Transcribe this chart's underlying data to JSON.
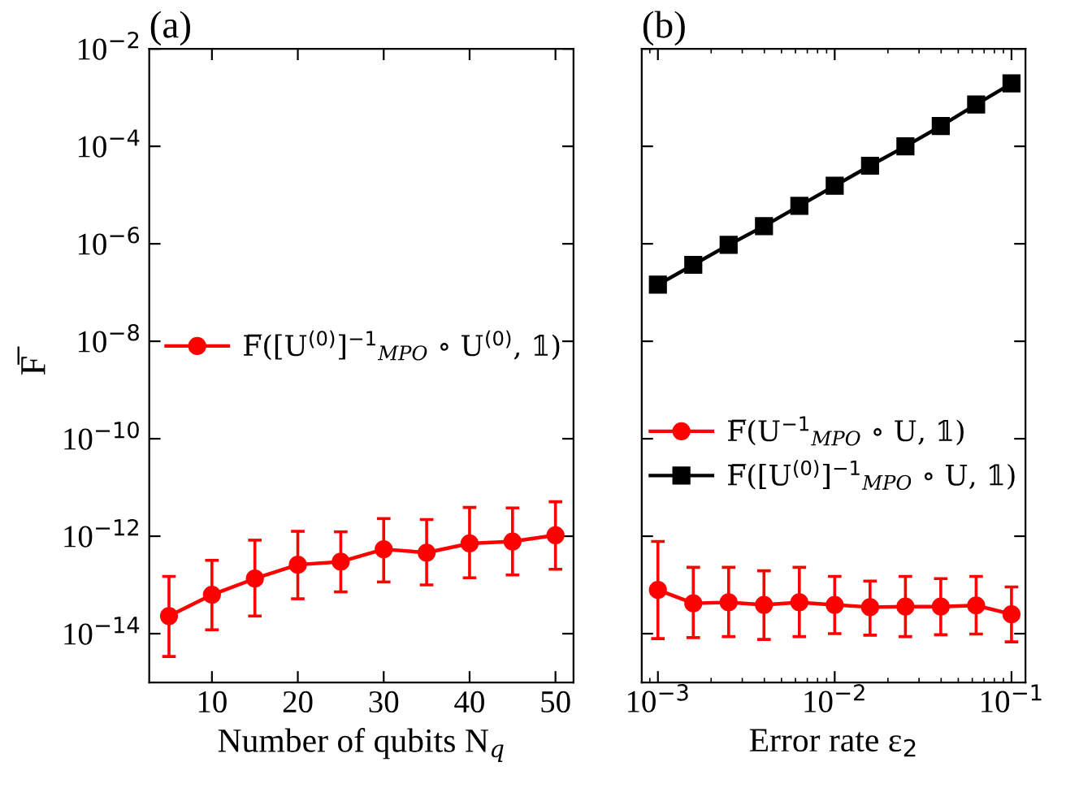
{
  "chart_data": [
    {
      "type": "line",
      "annotations": [
        "(a)"
      ],
      "xlabel": "Number of qubits N$_{q}$",
      "ylabel": "F̅",
      "log": "y",
      "xlim": [
        2.7,
        52.1
      ],
      "xticks": [
        10,
        20,
        30,
        40,
        50
      ],
      "ylim": [
        1e-15,
        0.01
      ],
      "yticks": [
        {
          "value": 1e-14,
          "label": "10$^{−14}$"
        },
        {
          "value": 1e-12,
          "label": "10$^{−12}$"
        },
        {
          "value": 1e-10,
          "label": "10$^{−10}$"
        },
        {
          "value": 1e-08,
          "label": "10$^{−8}$"
        },
        {
          "value": 1e-06,
          "label": "10$^{−6}$"
        },
        {
          "value": 0.0001,
          "label": "10$^{−4}$"
        },
        {
          "value": 0.01,
          "label": "10$^{−2}$"
        }
      ],
      "legend": "center left",
      "grid": false,
      "series": [
        {
          "name": "F̅([U$^{(0)}$]$^{−1}$$_{MPO}$ ∘ U$^{(0)}$, 𝟙)",
          "color": "#ff0000",
          "marker": "circle",
          "x": [
            5,
            10,
            15,
            20,
            25,
            30,
            35,
            40,
            45,
            50
          ],
          "values": [
            2.3e-14,
            6.3e-14,
            1.35e-13,
            2.6e-13,
            3e-13,
            5.4e-13,
            4.6e-13,
            7.1e-13,
            7.8e-13,
            1.05e-12
          ],
          "errors": [
            [
              3.4e-15,
              1.5e-13
            ],
            [
              1.2e-14,
              3.2e-13
            ],
            [
              2.3e-14,
              8.3e-13
            ],
            [
              5.2e-14,
              1.26e-12
            ],
            [
              7.2e-14,
              1.23e-12
            ],
            [
              1.15e-13,
              2.3e-12
            ],
            [
              1e-13,
              2.2e-12
            ],
            [
              1.4e-13,
              3.9e-12
            ],
            [
              1.6e-13,
              3.8e-12
            ],
            [
              2.1e-13,
              5.1e-12
            ]
          ]
        }
      ]
    },
    {
      "type": "line",
      "annotations": [
        "(b)"
      ],
      "xlabel": "Error rate ε$_{2}$",
      "log": "xy",
      "xlim": [
        0.00081,
        0.12
      ],
      "xticks": [
        {
          "value": 0.001,
          "label": "10$^{−3}$"
        },
        {
          "value": 0.01,
          "label": "10$^{−2}$"
        },
        {
          "value": 0.1,
          "label": "10$^{−1}$"
        }
      ],
      "ylim": [
        1e-15,
        0.01
      ],
      "yticks": [
        {
          "value": 1e-14,
          "label": null
        },
        {
          "value": 1e-12,
          "label": null
        },
        {
          "value": 1e-10,
          "label": null
        },
        {
          "value": 1e-08,
          "label": null
        },
        {
          "value": 1e-06,
          "label": null
        },
        {
          "value": 0.0001,
          "label": null
        },
        {
          "value": 0.01,
          "label": null
        }
      ],
      "tick_labels": "x",
      "legend": "center",
      "grid": false,
      "series": [
        {
          "name": "F̅(U$^{−1}$$_{MPO}$ ∘ U, 𝟙)",
          "color": "#ff0000",
          "marker": "circle",
          "x": [
            0.001,
            0.001585,
            0.002512,
            0.003981,
            0.00631,
            0.01,
            0.01585,
            0.02512,
            0.03981,
            0.0631,
            0.1
          ],
          "values": [
            7.9e-14,
            4.2e-14,
            4.4e-14,
            3.9e-14,
            4.4e-14,
            3.9e-14,
            3.5e-14,
            3.6e-14,
            3.6e-14,
            3.8e-14,
            2.5e-14
          ],
          "errors": [
            [
              7.9e-15,
              7.8e-13
            ],
            [
              8.3e-15,
              2.3e-13
            ],
            [
              8.7e-15,
              2.3e-13
            ],
            [
              7.6e-15,
              1.95e-13
            ],
            [
              8.7e-15,
              2.3e-13
            ],
            [
              1e-14,
              1.5e-13
            ],
            [
              9.3e-15,
              1.2e-13
            ],
            [
              8.7e-15,
              1.5e-13
            ],
            [
              9.5e-15,
              1.35e-13
            ],
            [
              9.8e-15,
              1.5e-13
            ],
            [
              6.8e-15,
              9.1e-14
            ]
          ]
        },
        {
          "name": "F̅([U$^{(0)}$]$^{−1}$$_{MPO}$ ∘ U, 𝟙)",
          "color": "#000000",
          "marker": "square",
          "x": [
            0.001,
            0.001585,
            0.002512,
            0.003981,
            0.00631,
            0.01,
            0.01585,
            0.02512,
            0.03981,
            0.0631,
            0.1
          ],
          "values": [
            1.45e-07,
            3.7e-07,
            9.5e-07,
            2.3e-06,
            6e-06,
            1.55e-05,
            4e-05,
            0.0001,
            0.00026,
            0.00072,
            0.00195
          ]
        }
      ]
    }
  ]
}
